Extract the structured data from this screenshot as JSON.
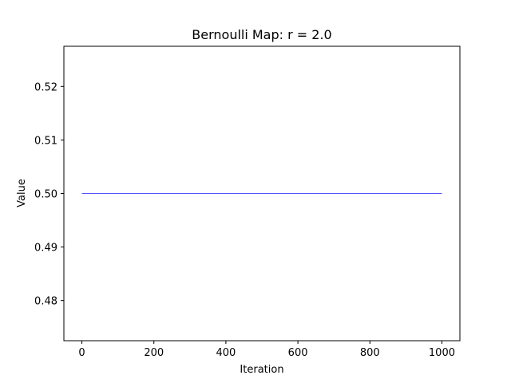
{
  "chart_data": {
    "type": "line",
    "title": "Bernoulli Map: r = 2.0",
    "xlabel": "Iteration",
    "ylabel": "Value",
    "xlim": [
      -50,
      1050
    ],
    "ylim": [
      0.4725,
      0.5275
    ],
    "x_ticks": [
      0,
      200,
      400,
      600,
      800,
      1000
    ],
    "x_tick_labels": [
      "0",
      "200",
      "400",
      "600",
      "800",
      "1000"
    ],
    "y_ticks": [
      0.48,
      0.49,
      0.5,
      0.51,
      0.52
    ],
    "y_tick_labels": [
      "0.48",
      "0.49",
      "0.50",
      "0.51",
      "0.52"
    ],
    "grid": false,
    "series": [
      {
        "color": "#0000ff",
        "x": [
          0,
          1000
        ],
        "y": [
          0.5,
          0.5
        ]
      }
    ]
  }
}
